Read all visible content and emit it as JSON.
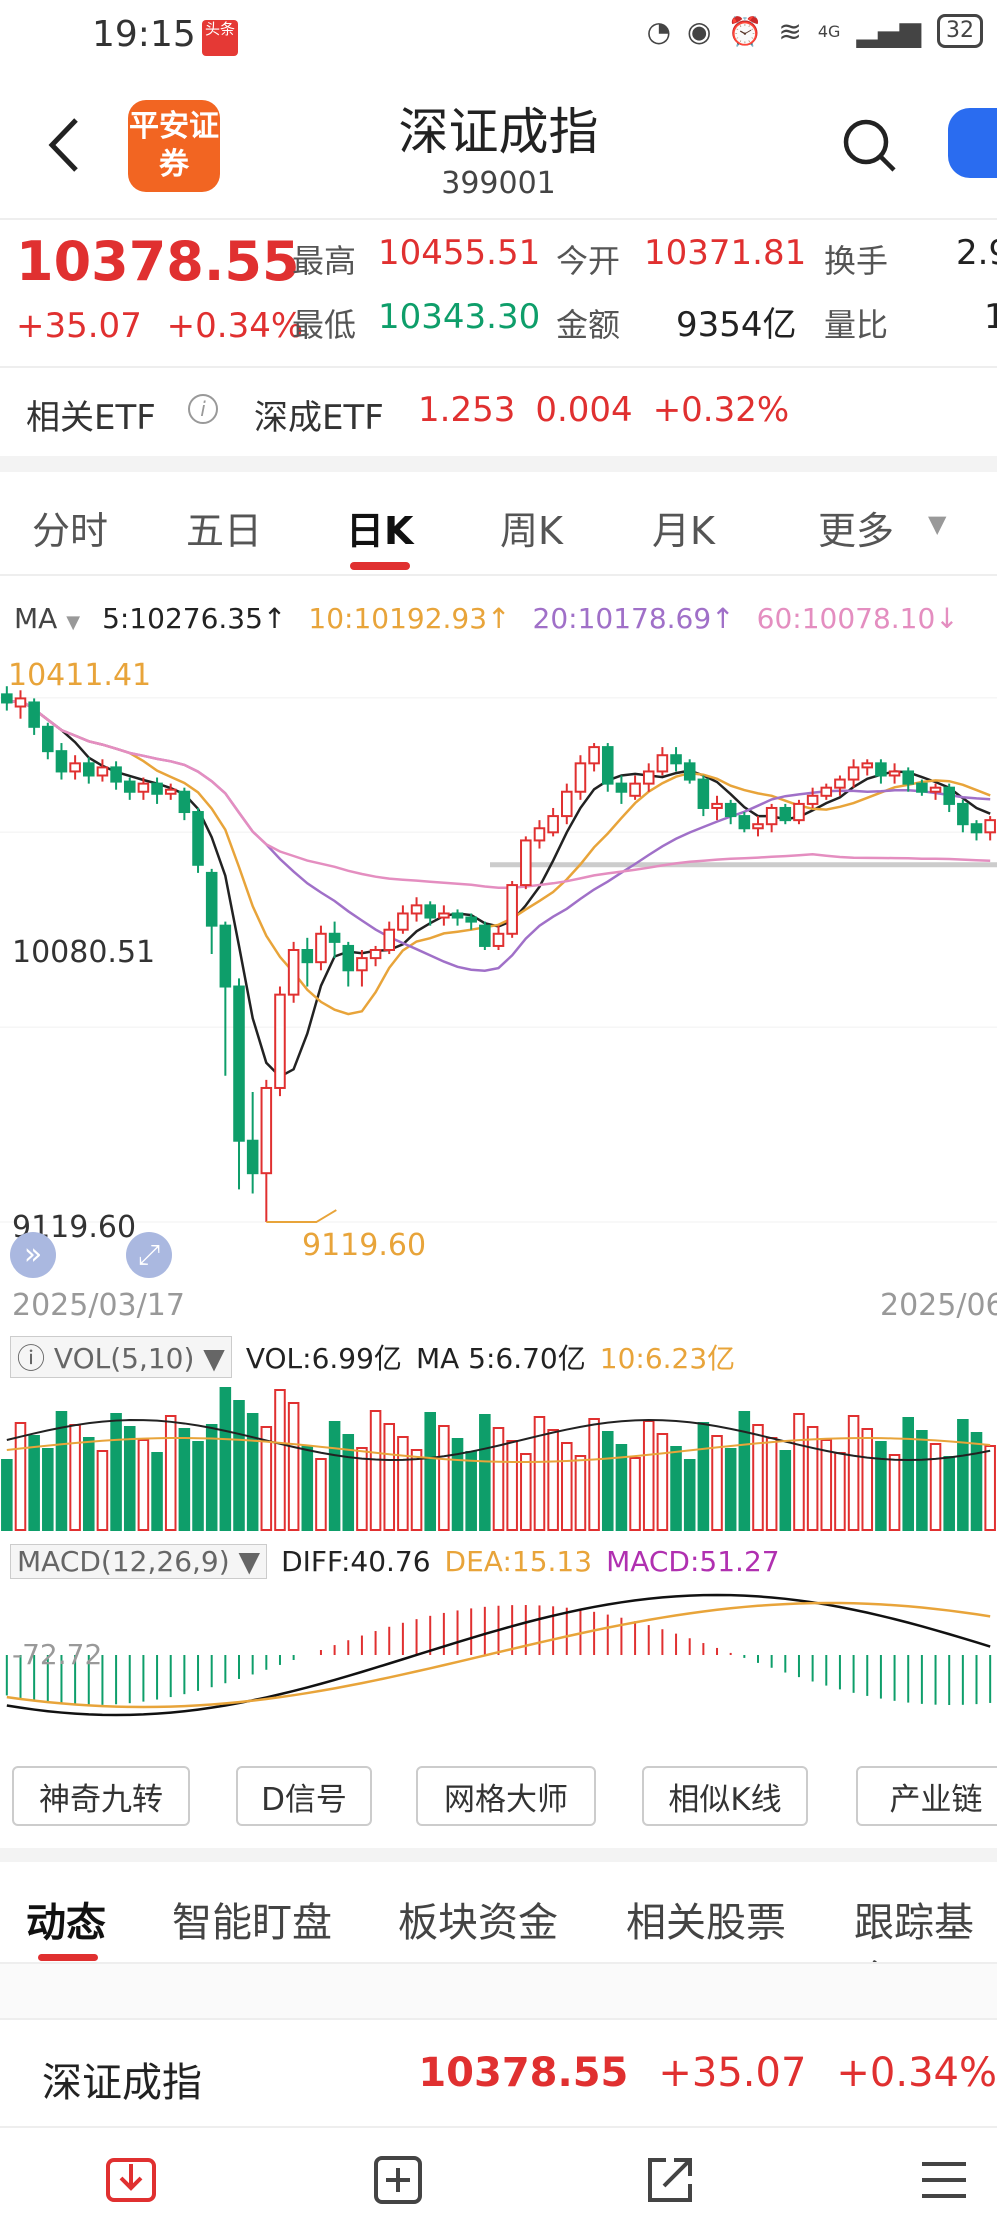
{
  "status": {
    "time": "19:15",
    "badge": "头条",
    "network": "4G",
    "battery": "32"
  },
  "header": {
    "title": "深证成指",
    "code": "399001",
    "logo_text": "平安证券"
  },
  "quote": {
    "price": "10378.55",
    "change": "+35.07",
    "change_pct": "+0.34%",
    "high_label": "最高",
    "high": "10455.51",
    "low_label": "最低",
    "low": "10343.30",
    "open_label": "今开",
    "open": "10371.81",
    "amount_label": "金额",
    "amount": "9354亿",
    "turnover_label": "换手",
    "turnover": "2.9",
    "volratio_label": "量比",
    "volratio": "1"
  },
  "etf": {
    "label": "相关ETF",
    "name": "深成ETF",
    "price": "1.253",
    "change": "0.004",
    "change_pct": "+0.32%"
  },
  "tabs": [
    "分时",
    "五日",
    "日K",
    "周K",
    "月K",
    "更多"
  ],
  "active_tab": "日K",
  "ma_legend": {
    "label": "MA",
    "ma5": "5:10276.35↑",
    "ma10": "10:10192.93↑",
    "ma20": "20:10178.69↑",
    "ma60": "60:10078.10↓"
  },
  "chart": {
    "top_label": "10411.41",
    "mid_label": "10080.51",
    "low_label": "9119.60",
    "min_marker": "9119.60",
    "date_start": "2025/03/17",
    "date_end": "2025/06"
  },
  "vol": {
    "label": "VOL(5,10)",
    "vol": "VOL:6.99亿",
    "ma5": "MA 5:6.70亿",
    "ma10": "10:6.23亿"
  },
  "macd": {
    "label": "MACD(12,26,9)",
    "diff": "DIFF:40.76",
    "dea": "DEA:15.13",
    "macd": "MACD:51.27",
    "axis": "-72.72"
  },
  "tools": [
    "神奇九转",
    "D信号",
    "网格大师",
    "相似K线",
    "产业链"
  ],
  "sections": [
    "动态",
    "智能盯盘",
    "板块资金",
    "相关股票",
    "跟踪基金"
  ],
  "bottom_bar": {
    "name": "深证成指",
    "price": "10378.55",
    "change": "+35.07",
    "change_pct": "+0.34%"
  },
  "colors": {
    "up": "#e03030",
    "down": "#0e9e6a",
    "ma5": "#222222",
    "ma10": "#e8a43a",
    "ma20": "#a070c8",
    "ma60": "#e48ec0"
  },
  "chart_data": {
    "type": "candlestick",
    "x_range": [
      "2025/03/17",
      "2025/06"
    ],
    "y_labels": [
      "10411.41",
      "10080.51",
      "9119.60"
    ],
    "min_value": 9119.6,
    "ma_values": {
      "MA5": 10276.35,
      "MA10": 10192.93,
      "MA20": 10178.69,
      "MA60": 10078.1
    },
    "candles": [
      [
        10420,
        10400,
        10440,
        10380
      ],
      [
        10390,
        10410,
        10430,
        10360
      ],
      [
        10400,
        10340,
        10410,
        10320
      ],
      [
        10340,
        10280,
        10350,
        10260
      ],
      [
        10280,
        10230,
        10300,
        10210
      ],
      [
        10230,
        10250,
        10270,
        10210
      ],
      [
        10250,
        10220,
        10265,
        10200
      ],
      [
        10220,
        10240,
        10260,
        10205
      ],
      [
        10240,
        10205,
        10255,
        10185
      ],
      [
        10205,
        10180,
        10215,
        10160
      ],
      [
        10180,
        10200,
        10215,
        10160
      ],
      [
        10200,
        10175,
        10215,
        10150
      ],
      [
        10175,
        10185,
        10200,
        10160
      ],
      [
        10180,
        10130,
        10190,
        10110
      ],
      [
        10130,
        10000,
        10140,
        9980
      ],
      [
        9980,
        9850,
        9990,
        9780
      ],
      [
        9850,
        9700,
        9860,
        9480
      ],
      [
        9700,
        9320,
        9720,
        9200
      ],
      [
        9320,
        9240,
        9440,
        9190
      ],
      [
        9240,
        9450,
        9470,
        9119.6
      ],
      [
        9450,
        9680,
        9700,
        9430
      ],
      [
        9680,
        9790,
        9810,
        9660
      ],
      [
        9790,
        9760,
        9820,
        9700
      ],
      [
        9760,
        9830,
        9850,
        9740
      ],
      [
        9830,
        9810,
        9860,
        9770
      ],
      [
        9800,
        9740,
        9810,
        9700
      ],
      [
        9740,
        9770,
        9790,
        9700
      ],
      [
        9770,
        9790,
        9800,
        9750
      ],
      [
        9790,
        9840,
        9860,
        9780
      ],
      [
        9840,
        9880,
        9900,
        9830
      ],
      [
        9880,
        9900,
        9920,
        9860
      ],
      [
        9900,
        9870,
        9910,
        9850
      ],
      [
        9870,
        9880,
        9900,
        9850
      ],
      [
        9880,
        9870,
        9890,
        9850
      ],
      [
        9870,
        9860,
        9880,
        9840
      ],
      [
        9850,
        9800,
        9860,
        9790
      ],
      [
        9800,
        9830,
        9850,
        9790
      ],
      [
        9830,
        9950,
        9960,
        9820
      ],
      [
        9950,
        10060,
        10070,
        9940
      ],
      [
        10060,
        10090,
        10110,
        10040
      ],
      [
        10080,
        10120,
        10140,
        10070
      ],
      [
        10120,
        10180,
        10200,
        10100
      ],
      [
        10180,
        10250,
        10270,
        10160
      ],
      [
        10250,
        10290,
        10300,
        10230
      ],
      [
        10290,
        10200,
        10300,
        10180
      ],
      [
        10200,
        10180,
        10220,
        10150
      ],
      [
        10170,
        10200,
        10220,
        10160
      ],
      [
        10200,
        10230,
        10250,
        10180
      ],
      [
        10230,
        10270,
        10290,
        10220
      ],
      [
        10270,
        10250,
        10290,
        10230
      ],
      [
        10250,
        10210,
        10260,
        10200
      ],
      [
        10210,
        10140,
        10220,
        10120
      ],
      [
        10140,
        10150,
        10170,
        10110
      ],
      [
        10150,
        10120,
        10160,
        10100
      ],
      [
        10120,
        10090,
        10130,
        10080
      ],
      [
        10090,
        10100,
        10120,
        10070
      ],
      [
        10100,
        10140,
        10150,
        10080
      ],
      [
        10140,
        10110,
        10150,
        10100
      ],
      [
        10110,
        10150,
        10160,
        10100
      ],
      [
        10150,
        10170,
        10190,
        10140
      ],
      [
        10170,
        10190,
        10200,
        10160
      ],
      [
        10190,
        10210,
        10220,
        10170
      ],
      [
        10210,
        10240,
        10260,
        10190
      ],
      [
        10240,
        10250,
        10260,
        10220
      ],
      [
        10250,
        10220,
        10260,
        10200
      ],
      [
        10220,
        10230,
        10250,
        10200
      ],
      [
        10230,
        10200,
        10240,
        10180
      ],
      [
        10200,
        10180,
        10210,
        10170
      ],
      [
        10180,
        10190,
        10200,
        10160
      ],
      [
        10190,
        10150,
        10200,
        10130
      ],
      [
        10150,
        10100,
        10160,
        10080
      ],
      [
        10100,
        10080,
        10110,
        10060
      ],
      [
        10080,
        10110,
        10120,
        10060
      ]
    ]
  }
}
